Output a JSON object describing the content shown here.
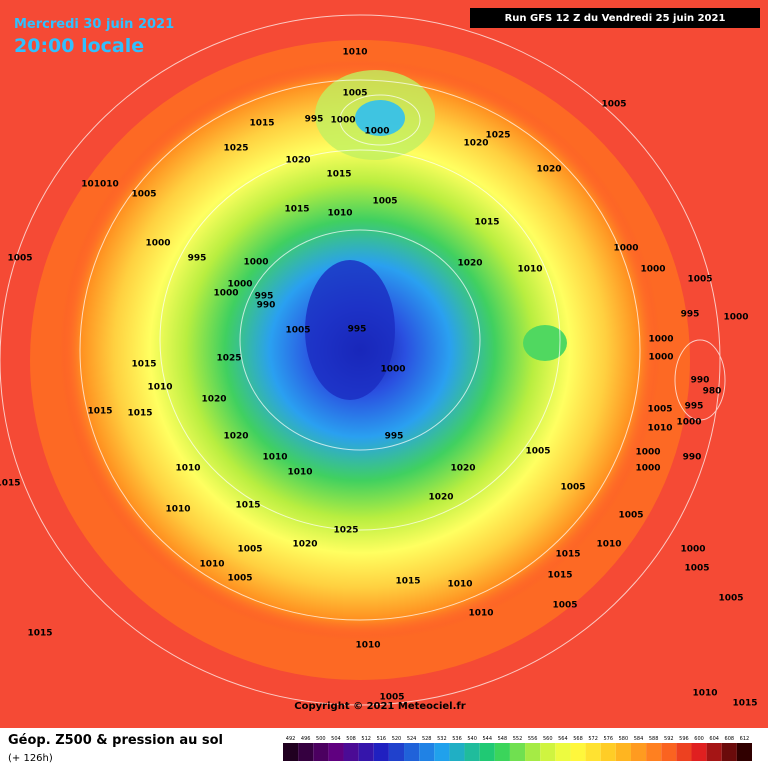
{
  "header": {
    "date": "Mercredi 30 juin 2021",
    "time": "20:00 locale",
    "run": "Run GFS 12 Z du Vendredi 25 juin 2021"
  },
  "copyright": "Copyright © 2021 Meteociel.fr",
  "footer": {
    "title": "Géop. Z500 & pression au sol",
    "lead": "(+ 126h)"
  },
  "legend": {
    "values": [
      492,
      496,
      500,
      504,
      508,
      512,
      516,
      520,
      524,
      528,
      532,
      536,
      540,
      544,
      548,
      552,
      556,
      560,
      564,
      568,
      572,
      576,
      580,
      584,
      588,
      592,
      596,
      600,
      604,
      608,
      612
    ]
  },
  "isobar_labels": [
    "1010",
    "1005",
    "995",
    "1000",
    "1000",
    "1005",
    "1015",
    "1025",
    "1020",
    "1025",
    "1020",
    "1020",
    "1015",
    "101010",
    "1005",
    "1005",
    "1015",
    "1010",
    "1015",
    "1000",
    "995",
    "1000",
    "1005",
    "1000",
    "1020",
    "1010",
    "1000",
    "1005",
    "1000",
    "1000",
    "995",
    "990",
    "995",
    "1000",
    "1005",
    "995",
    "1000",
    "1000",
    "1025",
    "1015",
    "1000",
    "1010",
    "990",
    "980",
    "1020",
    "995",
    "1015",
    "1015",
    "1005",
    "1000",
    "1010",
    "1020",
    "995",
    "1005",
    "1000",
    "990",
    "1010",
    "1020",
    "1010",
    "1010",
    "1000",
    "1015",
    "1005",
    "1020",
    "1010",
    "1015",
    "1005",
    "1025",
    "1020",
    "1005",
    "1010",
    "1015",
    "1000",
    "1010",
    "1005",
    "1015",
    "1015",
    "1010",
    "1005",
    "1005",
    "1005",
    "1010",
    "1015",
    "1010",
    "1005",
    "1010",
    "1015"
  ]
}
